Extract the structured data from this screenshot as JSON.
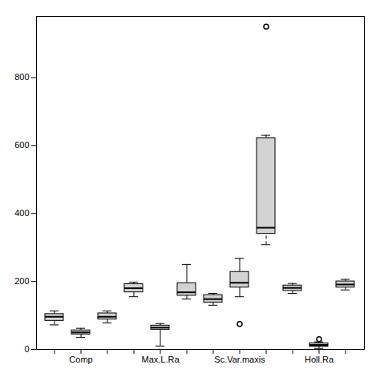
{
  "chart_data": {
    "type": "box",
    "categories": [
      null,
      "Comp",
      null,
      null,
      "Max.L.Ra",
      null,
      null,
      "Sc.Var.maxis",
      null,
      null,
      "Holl.Ra",
      null
    ],
    "boxes": [
      {
        "q1": 84,
        "median": 96,
        "q3": 104,
        "whislo": 72,
        "whishi": 113,
        "fliers": [],
        "line_style": "solid"
      },
      {
        "q1": 44,
        "median": 50,
        "q3": 56,
        "whislo": 35,
        "whishi": 62,
        "fliers": [],
        "line_style": "solid"
      },
      {
        "q1": 88,
        "median": 96,
        "q3": 106,
        "whislo": 78,
        "whishi": 113,
        "fliers": [],
        "line_style": "solid"
      },
      {
        "q1": 168,
        "median": 180,
        "q3": 192,
        "whislo": 155,
        "whishi": 198,
        "fliers": [],
        "line_style": "solid"
      },
      {
        "q1": 58,
        "median": 64,
        "q3": 70,
        "whislo": 10,
        "whishi": 76,
        "fliers": [],
        "line_style": "solid"
      },
      {
        "q1": 158,
        "median": 168,
        "q3": 195,
        "whislo": 148,
        "whishi": 250,
        "fliers": [],
        "line_style": "solid"
      },
      {
        "q1": 138,
        "median": 148,
        "q3": 160,
        "whislo": 130,
        "whishi": 165,
        "fliers": [],
        "line_style": "solid"
      },
      {
        "q1": 182,
        "median": 196,
        "q3": 228,
        "whislo": 155,
        "whishi": 268,
        "fliers": [
          75
        ],
        "line_style": "solid"
      },
      {
        "q1": 340,
        "median": 358,
        "q3": 622,
        "whislo": 308,
        "whishi": 630,
        "fliers": [
          950
        ],
        "line_style": "dashed"
      },
      {
        "q1": 172,
        "median": 181,
        "q3": 188,
        "whislo": 165,
        "whishi": 194,
        "fliers": [],
        "line_style": "solid"
      },
      {
        "q1": 8,
        "median": 13,
        "q3": 18,
        "whislo": 3,
        "whishi": 22,
        "fliers": [
          30
        ],
        "line_style": "solid"
      },
      {
        "q1": 182,
        "median": 191,
        "q3": 200,
        "whislo": 175,
        "whishi": 206,
        "fliers": [],
        "line_style": "solid"
      }
    ],
    "color": "#d3d3d3",
    "ylim": [
      0,
      980
    ],
    "yticks": [
      0,
      200,
      400,
      600,
      800
    ],
    "grid": false
  }
}
